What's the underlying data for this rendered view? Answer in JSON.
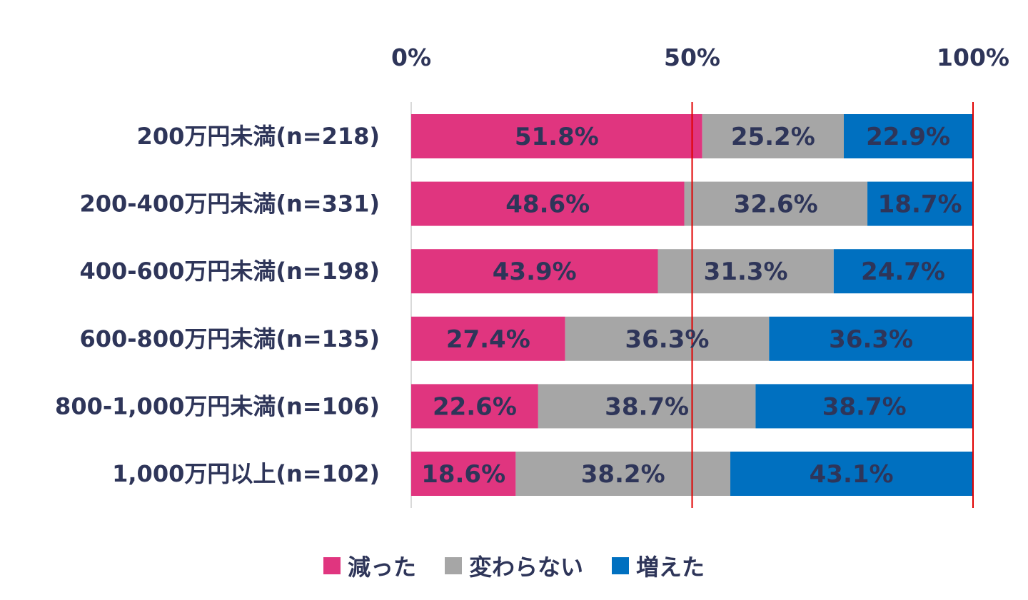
{
  "chart_data": {
    "type": "bar",
    "orientation": "horizontal",
    "stacked": "percent",
    "title": "",
    "xlabel": "",
    "ylabel": "",
    "xlim": [
      0,
      100
    ],
    "x_ticks": [
      "0%",
      "50%",
      "100%"
    ],
    "x_tick_values": [
      0,
      50,
      100
    ],
    "axis_position": "top",
    "reference_lines": [
      50,
      100
    ],
    "reference_line_color": "#E00000",
    "grid": false,
    "legend_position": "bottom",
    "categories": [
      "200万円未満(n=218)",
      "200-400万円未満(n=331)",
      "400-600万円未満(n=198)",
      "600-800万円未満(n=135)",
      "800-1,000万円未満(n=106)",
      "1,000万円以上(n=102)"
    ],
    "series": [
      {
        "name": "減った",
        "color": "#E0357F",
        "values": [
          51.8,
          48.6,
          43.9,
          27.4,
          22.6,
          18.6
        ]
      },
      {
        "name": "変わらない",
        "color": "#A6A6A6",
        "values": [
          25.2,
          32.6,
          31.3,
          36.3,
          38.7,
          38.2
        ]
      },
      {
        "name": "増えた",
        "color": "#0070C0",
        "values": [
          22.9,
          18.7,
          24.7,
          36.3,
          38.7,
          43.1
        ]
      }
    ],
    "value_suffix": "%"
  },
  "legend": {
    "items": [
      {
        "label": "減った",
        "color": "#E0357F"
      },
      {
        "label": "変わらない",
        "color": "#A6A6A6"
      },
      {
        "label": "増えた",
        "color": "#0070C0"
      }
    ]
  }
}
